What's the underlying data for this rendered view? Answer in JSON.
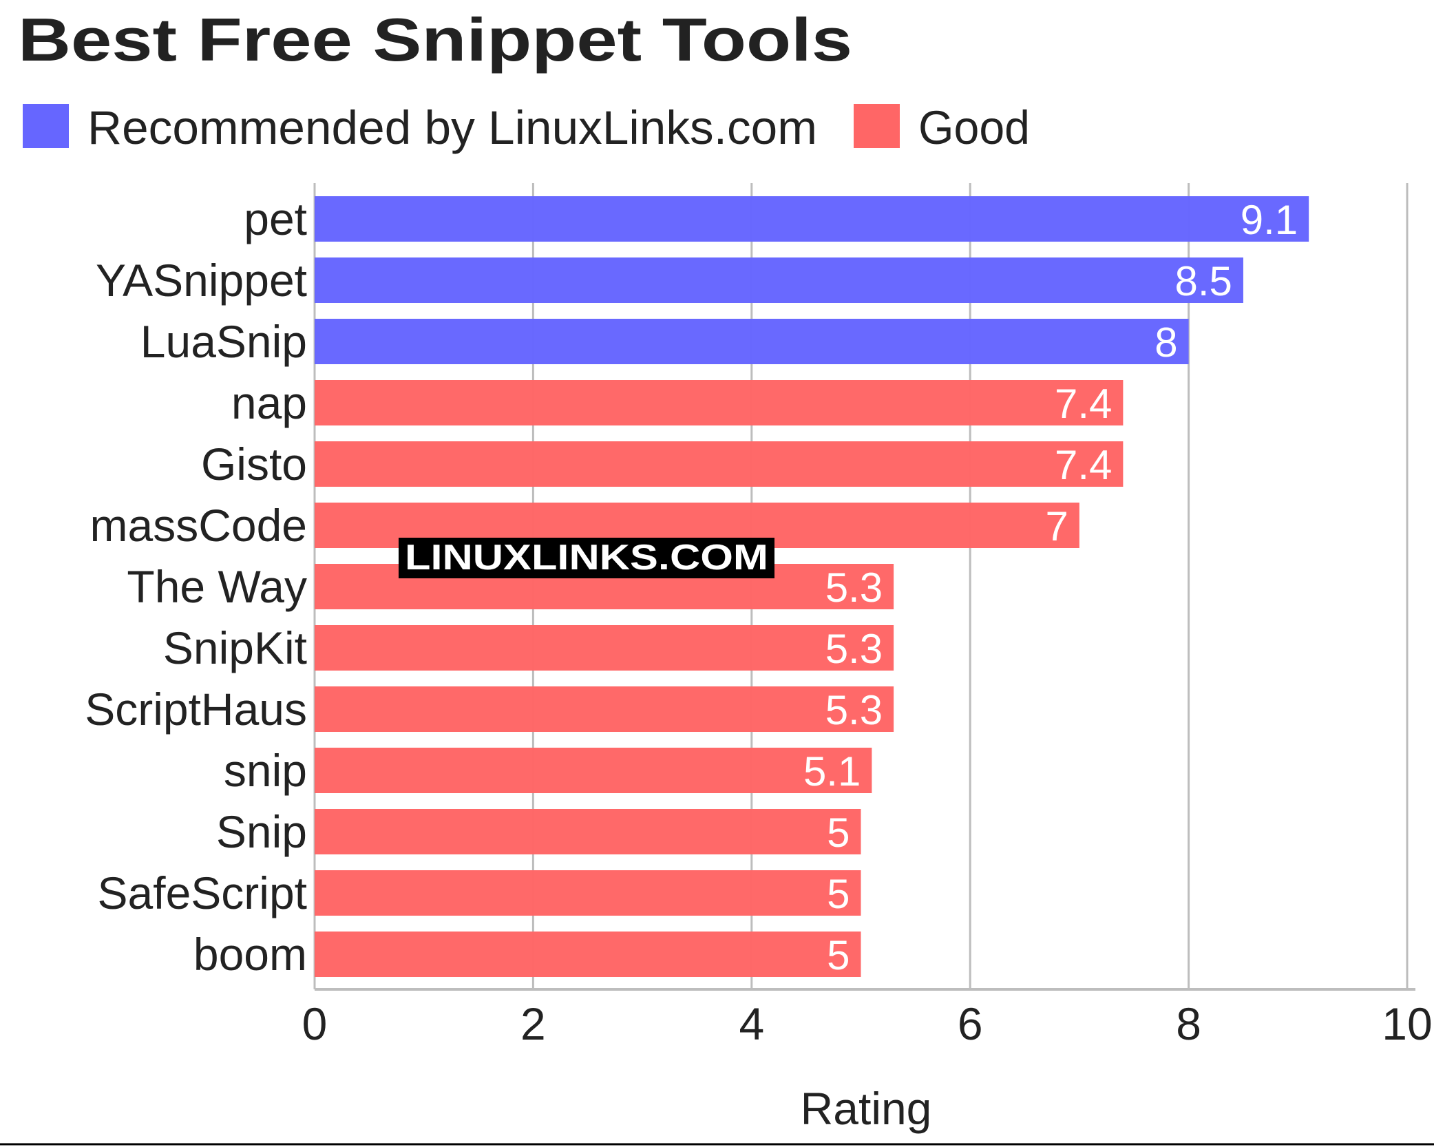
{
  "chart_data": {
    "type": "bar",
    "orientation": "horizontal",
    "title": "Best Free Snippet Tools",
    "xlabel": "Rating",
    "ylabel": "",
    "xlim": [
      0,
      10
    ],
    "x_ticks": [
      "0",
      "2",
      "4",
      "6",
      "8",
      "10"
    ],
    "grid": "vertical",
    "legend_position": "top-left",
    "legend": [
      {
        "name": "Recommended by LinuxLinks.com",
        "color": "#6666ff"
      },
      {
        "name": "Good",
        "color": "#ff6666"
      }
    ],
    "categories": [
      "pet",
      "YASnippet",
      "LuaSnip",
      "nap",
      "Gisto",
      "massCode",
      "The Way",
      "SnipKit",
      "ScriptHaus",
      "snip",
      "Snip",
      "SafeScript",
      "boom"
    ],
    "values": [
      9.1,
      8.5,
      8,
      7.4,
      7.4,
      7,
      5.3,
      5.3,
      5.3,
      5.1,
      5,
      5,
      5
    ],
    "value_labels": [
      "9.1",
      "8.5",
      "8",
      "7.4",
      "7.4",
      "7",
      "5.3",
      "5.3",
      "5.3",
      "5.1",
      "5",
      "5",
      "5"
    ],
    "groups": [
      "Recommended by LinuxLinks.com",
      "Recommended by LinuxLinks.com",
      "Recommended by LinuxLinks.com",
      "Good",
      "Good",
      "Good",
      "Good",
      "Good",
      "Good",
      "Good",
      "Good",
      "Good",
      "Good"
    ],
    "colors": {
      "Recommended by LinuxLinks.com": "#6666ff",
      "Good": "#ff6666"
    },
    "watermark": "LINUXLINKS.COM"
  }
}
